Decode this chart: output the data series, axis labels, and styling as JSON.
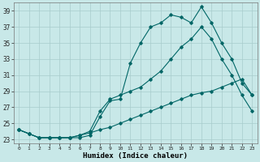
{
  "xlabel": "Humidex (Indice chaleur)",
  "bg_color": "#c8e8e8",
  "grid_color": "#a8cccc",
  "line_color": "#006666",
  "xlim": [
    -0.5,
    23.5
  ],
  "ylim": [
    22.5,
    40.0
  ],
  "yticks": [
    23,
    25,
    27,
    29,
    31,
    33,
    35,
    37,
    39
  ],
  "xticks": [
    0,
    1,
    2,
    3,
    4,
    5,
    6,
    7,
    8,
    9,
    10,
    11,
    12,
    13,
    14,
    15,
    16,
    17,
    18,
    19,
    20,
    21,
    22,
    23
  ],
  "series1_x": [
    0,
    1,
    2,
    3,
    4,
    5,
    6,
    7,
    8,
    9,
    10,
    11,
    12,
    13,
    14,
    15,
    16,
    17,
    18,
    19,
    20,
    21,
    22,
    23
  ],
  "series1_y": [
    24.2,
    23.7,
    23.2,
    23.2,
    23.2,
    23.2,
    23.2,
    23.5,
    25.8,
    27.8,
    28.0,
    32.5,
    35.0,
    37.0,
    37.5,
    38.5,
    38.2,
    37.5,
    39.5,
    37.5,
    35.0,
    33.0,
    30.0,
    28.5
  ],
  "series2_x": [
    0,
    1,
    2,
    3,
    4,
    5,
    6,
    7,
    8,
    9,
    10,
    11,
    12,
    13,
    14,
    15,
    16,
    17,
    18,
    19,
    20,
    21,
    22,
    23
  ],
  "series2_y": [
    24.2,
    23.7,
    23.2,
    23.2,
    23.2,
    23.2,
    23.5,
    24.0,
    26.5,
    28.0,
    28.5,
    29.0,
    29.5,
    30.5,
    31.5,
    33.0,
    34.5,
    35.5,
    37.0,
    35.5,
    33.0,
    31.0,
    28.5,
    26.5
  ],
  "series3_x": [
    0,
    1,
    2,
    3,
    4,
    5,
    6,
    7,
    8,
    9,
    10,
    11,
    12,
    13,
    14,
    15,
    16,
    17,
    18,
    19,
    20,
    21,
    22,
    23
  ],
  "series3_y": [
    24.2,
    23.7,
    23.2,
    23.2,
    23.2,
    23.2,
    23.5,
    23.8,
    24.2,
    24.5,
    25.0,
    25.5,
    26.0,
    26.5,
    27.0,
    27.5,
    28.0,
    28.5,
    28.8,
    29.0,
    29.5,
    30.0,
    30.5,
    28.5
  ]
}
